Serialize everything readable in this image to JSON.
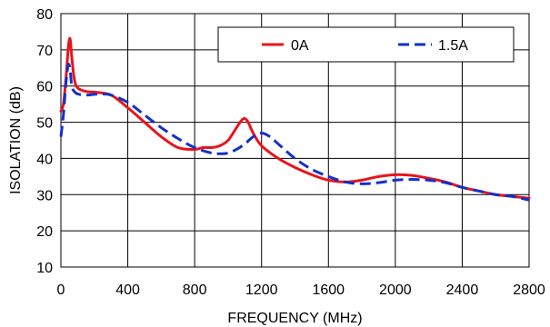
{
  "chart_data": {
    "type": "line",
    "title": "",
    "xlabel": "FREQUENCY (MHz)",
    "ylabel": "ISOLATION (dB)",
    "xlim": [
      0,
      2800
    ],
    "ylim": [
      10,
      80
    ],
    "xticks": [
      0,
      400,
      800,
      1200,
      1600,
      2000,
      2400,
      2800
    ],
    "yticks": [
      10,
      20,
      30,
      40,
      50,
      60,
      70,
      80
    ],
    "grid": true,
    "legend_position": "top-right",
    "series": [
      {
        "name": "0A",
        "color": "#e8141c",
        "dash": "solid",
        "x": [
          0,
          15,
          30,
          45,
          55,
          65,
          80,
          100,
          150,
          200,
          300,
          400,
          500,
          600,
          700,
          800,
          850,
          900,
          950,
          1000,
          1050,
          1080,
          1100,
          1120,
          1150,
          1200,
          1300,
          1400,
          1500,
          1600,
          1700,
          1800,
          1900,
          2000,
          2100,
          2200,
          2300,
          2400,
          2500,
          2600,
          2700,
          2800
        ],
        "y": [
          53,
          55,
          62,
          71,
          73,
          68,
          62,
          59.5,
          58.5,
          58.3,
          57.5,
          54,
          50,
          46,
          43,
          42.5,
          43,
          43,
          43.5,
          45,
          48.5,
          50.5,
          51,
          50,
          47,
          43.5,
          40,
          37.5,
          35.5,
          34,
          33.5,
          34,
          35,
          35.5,
          35.3,
          34.5,
          33.5,
          32,
          31,
          30,
          29.5,
          29
        ]
      },
      {
        "name": "1.5A",
        "color": "#1430c8",
        "dash": "dashed",
        "x": [
          0,
          15,
          25,
          35,
          45,
          55,
          65,
          80,
          100,
          150,
          200,
          250,
          300,
          400,
          500,
          600,
          700,
          800,
          900,
          950,
          1000,
          1050,
          1100,
          1150,
          1200,
          1250,
          1300,
          1400,
          1500,
          1600,
          1700,
          1800,
          1900,
          2000,
          2100,
          2200,
          2300,
          2400,
          2500,
          2600,
          2700,
          2800
        ],
        "y": [
          46,
          52,
          58,
          63,
          66,
          64.5,
          60,
          58.5,
          57.8,
          57.5,
          57.7,
          57.8,
          57.5,
          55.5,
          52,
          48.5,
          45.5,
          43,
          41.5,
          41.3,
          41.5,
          42.5,
          44,
          46,
          47,
          46,
          44,
          40,
          37,
          35,
          33.5,
          33,
          33.3,
          34,
          34.2,
          34,
          33.3,
          32,
          31,
          30,
          29.5,
          28.5
        ]
      }
    ]
  }
}
